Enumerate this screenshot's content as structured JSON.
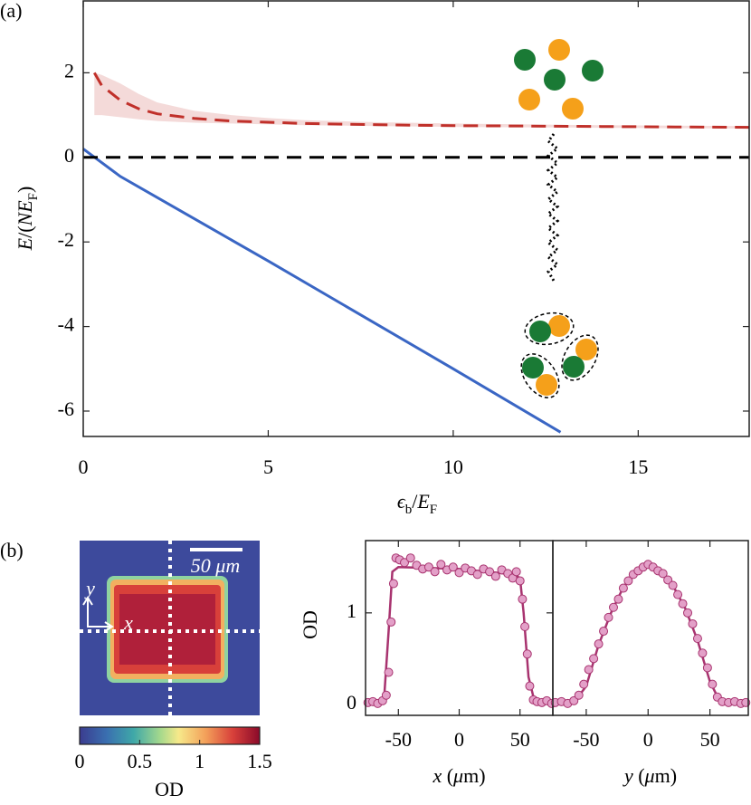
{
  "chart_data": [
    {
      "type": "line",
      "panel_label": "(a)",
      "xlabel": [
        {
          "text": "ϵ",
          "italic": true
        },
        {
          "text": "b",
          "sub": true
        },
        {
          "text": "/"
        },
        {
          "text": "E",
          "italic": true
        },
        {
          "text": "F",
          "sub": true
        }
      ],
      "ylabel": [
        {
          "text": "E",
          "italic": true
        },
        {
          "text": "/("
        },
        {
          "text": "NE",
          "italic": true
        },
        {
          "text": "F",
          "sub": true
        },
        {
          "text": ")"
        }
      ],
      "xlim": [
        0,
        18
      ],
      "ylim": [
        -6.6,
        3.7
      ],
      "xticks": [
        0,
        5,
        10,
        15
      ],
      "yticks": [
        -6,
        -4,
        -2,
        0,
        2
      ],
      "series": [
        {
          "color": "#c0302a",
          "dash": true,
          "x": [
            0.3,
            0.5,
            1,
            1.5,
            2,
            3,
            4,
            5,
            6,
            8,
            10,
            12,
            14,
            16,
            18
          ],
          "y": [
            2.0,
            1.7,
            1.35,
            1.15,
            1.03,
            0.92,
            0.86,
            0.83,
            0.8,
            0.77,
            0.75,
            0.74,
            0.73,
            0.72,
            0.71
          ],
          "band": {
            "upper": [
              2.0,
              1.95,
              1.75,
              1.5,
              1.3,
              1.1,
              1.0,
              0.93,
              0.88,
              0.83,
              0.8,
              0.78,
              0.76,
              0.75,
              0.74
            ],
            "lower": [
              1.0,
              1.0,
              0.95,
              0.9,
              0.86,
              0.82,
              0.8,
              0.78,
              0.76,
              0.74,
              0.72,
              0.71,
              0.7,
              0.69,
              0.68
            ]
          }
        },
        {
          "color": "#3a66c4",
          "dash": false,
          "x": [
            0,
            1,
            2.5,
            5,
            10,
            12.9
          ],
          "y": [
            0.2,
            -0.45,
            -1.2,
            -2.45,
            -5.0,
            -6.5
          ]
        },
        {
          "color": "#000000",
          "dash": true,
          "x": [
            0,
            18
          ],
          "y": [
            0,
            0
          ]
        }
      ]
    },
    {
      "type": "heatmap",
      "panel_label": "(b)",
      "scalebar_label": "50 μm",
      "xlabel": "x",
      "ylabel": "y",
      "colorbar": {
        "label": "OD",
        "lim": [
          0,
          1.5
        ],
        "ticks": [
          0,
          0.5,
          1,
          1.5
        ]
      }
    },
    {
      "type": "scatter",
      "color": "#a8336f",
      "marker_color": "#e3a0c8",
      "xlabel": [
        {
          "text": "x",
          "italic": true
        },
        {
          "text": " ("
        },
        {
          "text": "μ",
          "italic": true
        },
        {
          "text": "m)"
        }
      ],
      "ylabel": [
        {
          "text": "OD"
        }
      ],
      "xlim": [
        -77,
        77
      ],
      "ylim": [
        -0.12,
        1.79
      ],
      "xticks": [
        -50,
        0,
        50
      ],
      "yticks": [
        0,
        1
      ],
      "points": {
        "x": [
          -75,
          -71,
          -67,
          -63,
          -60,
          -58,
          -56,
          -54,
          -52,
          -49,
          -45,
          -40,
          -35,
          -30,
          -25,
          -20,
          -15,
          -10,
          -5,
          0,
          5,
          10,
          15,
          20,
          25,
          30,
          35,
          40,
          44,
          47,
          50,
          52,
          54,
          56,
          58,
          61,
          64,
          68,
          72,
          76
        ],
        "y": [
          0.02,
          0.03,
          0.01,
          0.04,
          0.1,
          0.35,
          0.9,
          1.32,
          1.6,
          1.58,
          1.55,
          1.6,
          1.52,
          1.48,
          1.5,
          1.45,
          1.53,
          1.47,
          1.5,
          1.44,
          1.49,
          1.46,
          1.42,
          1.48,
          1.45,
          1.4,
          1.47,
          1.43,
          1.38,
          1.45,
          1.35,
          1.15,
          0.85,
          0.55,
          0.2,
          0.05,
          0.03,
          0.02,
          0.04,
          0.01
        ]
      },
      "fit": {
        "x": [
          -77,
          -62,
          -58,
          -55,
          -50,
          0,
          45,
          50,
          53,
          57,
          62,
          77
        ],
        "y": [
          0.02,
          0.02,
          0.8,
          1.45,
          1.5,
          1.48,
          1.42,
          1.38,
          1.0,
          0.3,
          0.03,
          0.02
        ]
      }
    },
    {
      "type": "scatter",
      "color": "#a8336f",
      "marker_color": "#e3a0c8",
      "xlabel": [
        {
          "text": "y",
          "italic": true
        },
        {
          "text": " ("
        },
        {
          "text": "μ",
          "italic": true
        },
        {
          "text": "m)"
        }
      ],
      "xlim": [
        -77,
        81
      ],
      "ylim": [
        -0.12,
        1.79
      ],
      "xticks": [
        -50,
        0,
        50
      ],
      "points": {
        "x": [
          -75,
          -70,
          -65,
          -60,
          -56,
          -52,
          -48,
          -44,
          -40,
          -36,
          -32,
          -28,
          -24,
          -20,
          -16,
          -12,
          -8,
          -4,
          0,
          4,
          8,
          12,
          16,
          20,
          24,
          28,
          32,
          36,
          40,
          44,
          48,
          52,
          56,
          60,
          65,
          70,
          75,
          79
        ],
        "y": [
          0.02,
          0.03,
          0.01,
          0.04,
          0.1,
          0.22,
          0.38,
          0.5,
          0.66,
          0.8,
          0.95,
          1.06,
          1.15,
          1.27,
          1.35,
          1.42,
          1.46,
          1.5,
          1.53,
          1.5,
          1.46,
          1.43,
          1.36,
          1.3,
          1.2,
          1.1,
          1.0,
          0.88,
          0.72,
          0.56,
          0.4,
          0.22,
          0.08,
          0.03,
          0.02,
          0.03,
          0.01,
          0.02
        ]
      },
      "fit": {
        "x": [
          -77,
          -60,
          -50,
          -40,
          -30,
          -20,
          -10,
          0,
          10,
          20,
          30,
          40,
          50,
          58,
          81
        ],
        "y": [
          0.02,
          0.02,
          0.2,
          0.65,
          1.0,
          1.28,
          1.45,
          1.5,
          1.45,
          1.3,
          1.05,
          0.7,
          0.25,
          0.03,
          0.02
        ]
      }
    }
  ]
}
